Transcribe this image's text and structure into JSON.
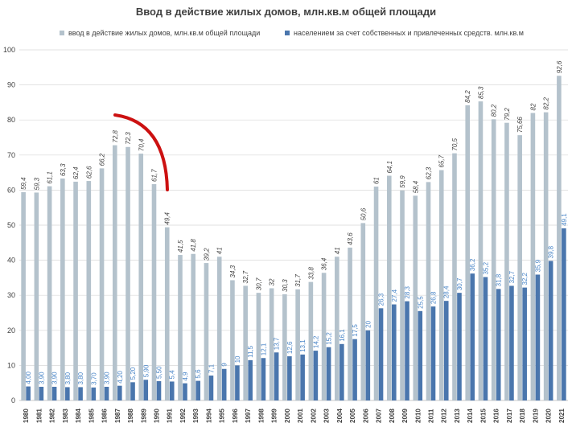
{
  "chart_data": {
    "type": "bar",
    "title": "Ввод в действие жилых домов, млн.кв.м общей площади",
    "xlabel": "",
    "ylabel": "",
    "ylim": [
      0,
      100
    ],
    "yticks": [
      0,
      10,
      20,
      30,
      40,
      50,
      60,
      70,
      80,
      90,
      100
    ],
    "grid": true,
    "legend_position": "top",
    "categories": [
      "1980",
      "1981",
      "1982",
      "1983",
      "1984",
      "1985",
      "1986",
      "1987",
      "1988",
      "1989",
      "1990",
      "1991",
      "1992",
      "1993",
      "1994",
      "1995",
      "1996",
      "1997",
      "1998",
      "1999",
      "2000",
      "2001",
      "2002",
      "2003",
      "2004",
      "2005",
      "2006",
      "2007",
      "2008",
      "2009",
      "2010",
      "2011",
      "2012",
      "2013",
      "2014",
      "2015",
      "2016",
      "2017",
      "2018",
      "2019",
      "2020",
      "2021"
    ],
    "series": [
      {
        "name": "ввод в действие жилых домов, млн.кв.м общей площади",
        "color": "#b4c2cc",
        "label_color": "#404040",
        "values": [
          59.4,
          59.3,
          61.1,
          63.3,
          62.4,
          62.6,
          66.2,
          72.8,
          72.3,
          70.4,
          61.7,
          49.4,
          41.5,
          41.8,
          39.2,
          41,
          34.3,
          32.7,
          30.7,
          32,
          30.3,
          31.7,
          33.8,
          36.4,
          41,
          43.6,
          50.6,
          61,
          64.1,
          59.9,
          58.4,
          62.3,
          65.7,
          70.5,
          84.2,
          85.3,
          80.2,
          79.2,
          75.66,
          82,
          82.2,
          92.6
        ],
        "labels": [
          "59,4",
          "59,3",
          "61,1",
          "63,3",
          "62,4",
          "62,6",
          "66,2",
          "72,8",
          "72,3",
          "70,4",
          "61,7",
          "49,4",
          "41,5",
          "41,8",
          "39,2",
          "41",
          "34,3",
          "32,7",
          "30,7",
          "32",
          "30,3",
          "31,7",
          "33,8",
          "36,4",
          "41",
          "43,6",
          "50,6",
          "61",
          "64,1",
          "59,9",
          "58,4",
          "62,3",
          "65,7",
          "70,5",
          "84,2",
          "85,3",
          "80,2",
          "79,2",
          "75,66",
          "82",
          "82,2",
          "92,6"
        ]
      },
      {
        "name": "населением за счет собственных и привлеченных средств. млн.кв.м",
        "color": "#4a76ad",
        "label_color": "#4a86c8",
        "values": [
          4.0,
          3.9,
          3.9,
          3.8,
          3.8,
          3.7,
          3.9,
          4.2,
          5.2,
          5.9,
          5.5,
          5.4,
          4.9,
          5.6,
          7.1,
          9,
          10,
          11.5,
          12.1,
          13.7,
          12.6,
          13.1,
          14.2,
          15.2,
          16.1,
          17.5,
          20,
          26.3,
          27.4,
          28.3,
          25.5,
          26.8,
          28.4,
          30.7,
          36.2,
          35.2,
          31.8,
          32.7,
          32.2,
          35.9,
          39.8,
          49.1
        ],
        "labels": [
          "4,00",
          "3,90",
          "3,90",
          "3,80",
          "3,80",
          "3,70",
          "3,90",
          "4,20",
          "5,20",
          "5,90",
          "5,50",
          "5,4",
          "4,9",
          "5,6",
          "7,1",
          "9",
          "10",
          "11,5",
          "12,1",
          "13,7",
          "12,6",
          "13,1",
          "14,2",
          "15,2",
          "16,1",
          "17,5",
          "20",
          "26,3",
          "27,4",
          "28,3",
          "25,5",
          "26,8",
          "28,4",
          "30,7",
          "36,2",
          "35,2",
          "31,8",
          "32,7",
          "32,2",
          "35,9",
          "39,8",
          "49,1"
        ]
      }
    ],
    "annotation": {
      "type": "arc",
      "color": "#cc1111",
      "description": "red arc over 1987–1990 peak"
    }
  }
}
